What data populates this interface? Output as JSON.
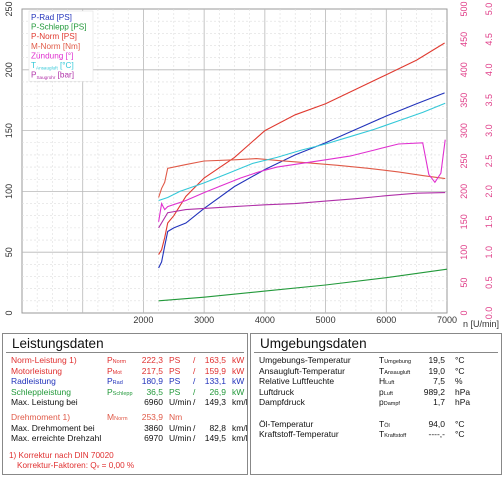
{
  "chart_data": {
    "type": "line",
    "x_axis": {
      "label": "n [U/min]",
      "range": [
        0,
        7000
      ],
      "ticks": [
        2000,
        3000,
        4000,
        5000,
        6000,
        7000
      ]
    },
    "y_axis_left": {
      "range": [
        0,
        250
      ],
      "ticks": [
        0,
        50,
        100,
        150,
        200,
        250
      ]
    },
    "y_axis_right_inner": {
      "range": [
        0,
        500
      ],
      "ticks": [
        0,
        50,
        100,
        150,
        200,
        250,
        300,
        350,
        400,
        450,
        500
      ],
      "color": "#e0408a"
    },
    "y_axis_right_outer": {
      "range": [
        0,
        5
      ],
      "ticks": [
        "0.0",
        "0.5",
        "1.0",
        "1.5",
        "2.0",
        "2.5",
        "3.0",
        "3.5",
        "4.0",
        "4.5",
        "5.0"
      ],
      "color": "#e0408a"
    },
    "grid": true,
    "legend_position": "top-left",
    "legend": [
      {
        "label": "P-Rad [PS]",
        "color": "#2233bb"
      },
      {
        "label": "P-Schlepp [PS]",
        "color": "#22993a"
      },
      {
        "label": "P-Norm [PS]",
        "color": "#e03a30"
      },
      {
        "label": "M-Norm [Nm]",
        "color": "#e05a48"
      },
      {
        "label": "Zündung [°]",
        "color": "#e030d0"
      },
      {
        "label": "T",
        "sub": "Ansaugluft",
        "suffix": " [°C]",
        "color": "#33c8d8"
      },
      {
        "label": "P",
        "sub": "Saugrohr",
        "suffix": " [bar]",
        "color": "#b030a8"
      }
    ],
    "series": [
      {
        "name": "P-Rad [PS]",
        "axis": "left",
        "color": "#2233bb",
        "x": [
          2250,
          2300,
          2350,
          2400,
          2500,
          2700,
          3000,
          3500,
          4000,
          4500,
          5000,
          5500,
          6000,
          6500,
          6960
        ],
        "y": [
          37,
          42,
          55,
          67,
          70,
          74,
          86,
          104,
          118,
          130,
          140,
          151,
          162,
          172,
          181
        ]
      },
      {
        "name": "P-Schlepp [PS]",
        "axis": "left",
        "color": "#22993a",
        "x": [
          2250,
          3000,
          4000,
          5000,
          6000,
          7000
        ],
        "y": [
          10,
          13,
          18,
          23,
          29,
          36
        ]
      },
      {
        "name": "P-Norm [PS]",
        "axis": "left",
        "color": "#e03a30",
        "x": [
          2250,
          2300,
          2350,
          2400,
          2500,
          2700,
          3000,
          3500,
          4000,
          4500,
          5000,
          5500,
          6000,
          6500,
          6960
        ],
        "y": [
          48,
          52,
          62,
          74,
          80,
          96,
          111,
          128,
          150,
          163,
          172,
          184,
          196,
          208,
          222
        ]
      },
      {
        "name": "M-Norm [Nm]",
        "axis": "inner",
        "color": "#e05a48",
        "x": [
          2250,
          2300,
          2350,
          2400,
          2500,
          2700,
          3000,
          3500,
          3860,
          4200,
          4700,
          5200,
          5700,
          6200,
          6600,
          6970
        ],
        "y": [
          190,
          205,
          215,
          238,
          240,
          244,
          250,
          252,
          254,
          251,
          247,
          243,
          238,
          232,
          226,
          221
        ]
      },
      {
        "name": "Zündung [°]",
        "axis": "inner",
        "color": "#e030d0",
        "x": [
          2250,
          2300,
          2350,
          2400,
          2700,
          3000,
          3300,
          3600,
          3900,
          4200,
          4600,
          5000,
          5400,
          5800,
          6200,
          6600,
          6700,
          6800,
          6900,
          6970
        ],
        "y": [
          150,
          180,
          170,
          175,
          185,
          198,
          210,
          222,
          232,
          240,
          246,
          252,
          258,
          268,
          278,
          280,
          228,
          215,
          230,
          285
        ]
      },
      {
        "name": "T Ansaugluft [°C]",
        "axis": "inner",
        "color": "#33c8d8",
        "x": [
          2250,
          2400,
          2600,
          3000,
          3400,
          3800,
          4200,
          4600,
          5000,
          5400,
          5800,
          6200,
          6600,
          6970
        ],
        "y": [
          185,
          190,
          200,
          214,
          230,
          246,
          256,
          268,
          278,
          290,
          302,
          316,
          330,
          345
        ]
      },
      {
        "name": "P Saugrohr [bar]",
        "axis": "inner",
        "color": "#b030a8",
        "x": [
          2250,
          2400,
          2700,
          3000,
          3500,
          4000,
          4500,
          5000,
          5500,
          6000,
          6500,
          6970
        ],
        "y": [
          140,
          165,
          170,
          172,
          175,
          178,
          180,
          184,
          188,
          193,
          197,
          198
        ]
      }
    ]
  },
  "left_panel": {
    "title": "Leistungsdaten",
    "rows": [
      {
        "label": "Norm-Leistung",
        "mark": "1)",
        "sym": "P",
        "sub": "Norm",
        "v1": "222,3",
        "u1": "PS",
        "sep": "/",
        "v2": "163,5",
        "u2": "kW",
        "color": "#e03030"
      },
      {
        "label": "Motorleistung",
        "mark": "",
        "sym": "P",
        "sub": "Mot",
        "v1": "217,5",
        "u1": "PS",
        "sep": "/",
        "v2": "159,9",
        "u2": "kW",
        "color": "#e03030"
      },
      {
        "label": "Radleistung",
        "mark": "",
        "sym": "P",
        "sub": "Rad",
        "v1": "180,9",
        "u1": "PS",
        "sep": "/",
        "v2": "133,1",
        "u2": "kW",
        "color": "#2233bb"
      },
      {
        "label": "Schleppleistung",
        "mark": "",
        "sym": "P",
        "sub": "Schlepp",
        "v1": "36,5",
        "u1": "PS",
        "sep": "/",
        "v2": "26,9",
        "u2": "kW",
        "color": "#22993a"
      },
      {
        "label": "Max. Leistung bei",
        "mark": "",
        "sym": "",
        "sub": "",
        "v1": "6960",
        "u1": "U/min",
        "sep": "/",
        "v2": "149,3",
        "u2": "km/h",
        "color": "#111111"
      },
      {
        "label": "Drehmoment",
        "mark": "1)",
        "sym": "M",
        "sub": "Norm",
        "v1": "253,9",
        "u1": "Nm",
        "sep": "",
        "v2": "",
        "u2": "",
        "color": "#e05a48"
      },
      {
        "label": "Max. Drehmoment bei",
        "mark": "",
        "sym": "",
        "sub": "",
        "v1": "3860",
        "u1": "U/min",
        "sep": "/",
        "v2": "82,8",
        "u2": "km/h",
        "color": "#111111"
      },
      {
        "label": "Max. erreichte Drehzahl",
        "mark": "",
        "sym": "",
        "sub": "",
        "v1": "6970",
        "u1": "U/min",
        "sep": "/",
        "v2": "149,5",
        "u2": "km/h",
        "color": "#111111"
      }
    ],
    "note1": "1) Korrektur nach DIN 70020",
    "note2": "Korrektur-Faktoren: Q",
    "note2_sub": "v",
    "note2_value": "=  0,00 %"
  },
  "right_panel": {
    "title": "Umgebungsdaten",
    "rows": [
      {
        "label": "Umgebungs-Temperatur",
        "sym": "T",
        "sub": "Umgebung",
        "value": "19,5",
        "unit": "°C"
      },
      {
        "label": "Ansaugluft-Temperatur",
        "sym": "T",
        "sub": "Ansaugluft",
        "value": "19,0",
        "unit": "°C"
      },
      {
        "label": "Relative Luftfeuchte",
        "sym": "H",
        "sub": "Luft",
        "value": "7,5",
        "unit": "%"
      },
      {
        "label": "Luftdruck",
        "sym": "p",
        "sub": "Luft",
        "value": "989,2",
        "unit": "hPa"
      },
      {
        "label": "Dampfdruck",
        "sym": "p",
        "sub": "Dampf",
        "value": "1,7",
        "unit": "hPa"
      },
      {
        "label": "",
        "sym": "",
        "sub": "",
        "value": "",
        "unit": ""
      },
      {
        "label": "Öl-Temperatur",
        "sym": "T",
        "sub": "Öl",
        "value": "94,0",
        "unit": "°C"
      },
      {
        "label": "Kraftstoff-Temperatur",
        "sym": "T",
        "sub": "Kraftstoff",
        "value": "----,-",
        "unit": "°C"
      }
    ]
  }
}
